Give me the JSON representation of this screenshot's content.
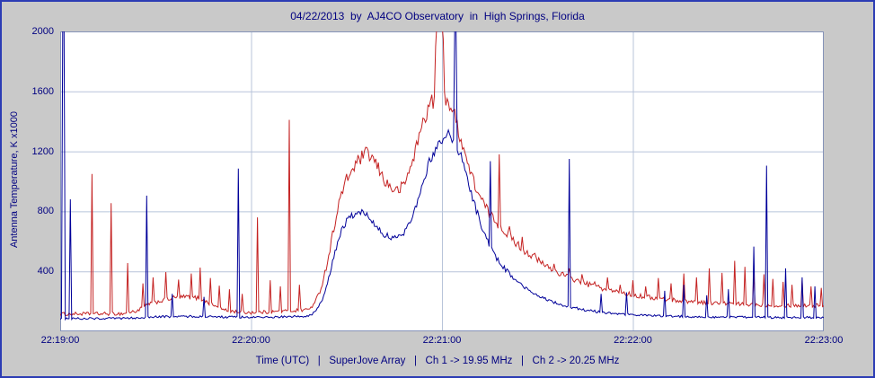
{
  "window": {
    "background": "#c9c9c9",
    "border_color": "#2c3cb4",
    "plot_background": "#ffffff",
    "grid_color": "#b8c4da",
    "axis_color": "#8593b8",
    "text_color": "#000080"
  },
  "chart_data": {
    "type": "line",
    "title": "04/22/2013  by  AJ4CO Observatory  in  High Springs, Florida",
    "xlabel": "Time (UTC)   |   SuperJove Array   |   Ch 1 -> 19.95 MHz   |   Ch 2 -> 20.25 MHz",
    "ylabel": "Antenna Temperature, K x1000",
    "xlim": [
      0,
      240
    ],
    "ylim": [
      0,
      2000
    ],
    "grid": true,
    "x_ticks": [
      {
        "t": 0,
        "label": "22:19:00"
      },
      {
        "t": 60,
        "label": "22:20:00"
      },
      {
        "t": 120,
        "label": "22:21:00"
      },
      {
        "t": 180,
        "label": "22:22:00"
      },
      {
        "t": 240,
        "label": "22:23:00"
      }
    ],
    "y_ticks": [
      {
        "v": 2000,
        "label": "2000"
      },
      {
        "v": 1600,
        "label": "1600"
      },
      {
        "v": 1200,
        "label": "1200"
      },
      {
        "v": 800,
        "label": "800"
      },
      {
        "v": 400,
        "label": "400"
      }
    ],
    "series": [
      {
        "name": "Ch 1 -> 19.95 MHz",
        "color": "#c42222",
        "envelope": [
          [
            0,
            115
          ],
          [
            20,
            118
          ],
          [
            24,
            135
          ],
          [
            28,
            185
          ],
          [
            32,
            205
          ],
          [
            36,
            225
          ],
          [
            40,
            230
          ],
          [
            44,
            220
          ],
          [
            48,
            175
          ],
          [
            52,
            138
          ],
          [
            58,
            126
          ],
          [
            65,
            128
          ],
          [
            72,
            136
          ],
          [
            78,
            146
          ],
          [
            80,
            185
          ],
          [
            82,
            290
          ],
          [
            84,
            460
          ],
          [
            86,
            690
          ],
          [
            88,
            890
          ],
          [
            90,
            1010
          ],
          [
            92,
            1085
          ],
          [
            94,
            1145
          ],
          [
            96,
            1185
          ],
          [
            98,
            1160
          ],
          [
            100,
            1085
          ],
          [
            102,
            1005
          ],
          [
            104,
            955
          ],
          [
            106,
            935
          ],
          [
            108,
            975
          ],
          [
            110,
            1085
          ],
          [
            112,
            1235
          ],
          [
            114,
            1395
          ],
          [
            116,
            1505
          ],
          [
            118,
            1565
          ],
          [
            120,
            1590
          ],
          [
            122,
            1540
          ],
          [
            124,
            1430
          ],
          [
            126,
            1285
          ],
          [
            128,
            1125
          ],
          [
            130,
            995
          ],
          [
            132,
            895
          ],
          [
            134,
            815
          ],
          [
            136,
            755
          ],
          [
            139,
            685
          ],
          [
            142,
            615
          ],
          [
            145,
            555
          ],
          [
            148,
            505
          ],
          [
            152,
            445
          ],
          [
            156,
            398
          ],
          [
            160,
            358
          ],
          [
            165,
            318
          ],
          [
            170,
            288
          ],
          [
            175,
            262
          ],
          [
            180,
            242
          ],
          [
            188,
            218
          ],
          [
            196,
            202
          ],
          [
            205,
            190
          ],
          [
            215,
            180
          ],
          [
            225,
            174
          ],
          [
            240,
            172
          ]
        ],
        "spikes": [
          [
            10,
            1050
          ],
          [
            16,
            855
          ],
          [
            21,
            455
          ],
          [
            26,
            320
          ],
          [
            29,
            360
          ],
          [
            33,
            395
          ],
          [
            37,
            345
          ],
          [
            41,
            385
          ],
          [
            44,
            425
          ],
          [
            47,
            355
          ],
          [
            50,
            305
          ],
          [
            53,
            280
          ],
          [
            57,
            250
          ],
          [
            62,
            760
          ],
          [
            66,
            340
          ],
          [
            69,
            300
          ],
          [
            72,
            1410
          ],
          [
            75,
            310
          ],
          [
            118,
            1900
          ],
          [
            118.4,
            2050
          ],
          [
            118.8,
            2050
          ],
          [
            119.2,
            2050
          ],
          [
            119.6,
            2050
          ],
          [
            120,
            2050
          ],
          [
            120.4,
            1950
          ],
          [
            138,
            1180
          ],
          [
            141,
            700
          ],
          [
            145,
            630
          ],
          [
            149,
            520
          ],
          [
            155,
            450
          ],
          [
            160,
            420
          ],
          [
            164,
            380
          ],
          [
            168,
            330
          ],
          [
            172,
            360
          ],
          [
            176,
            310
          ],
          [
            180,
            340
          ],
          [
            184,
            300
          ],
          [
            188,
            355
          ],
          [
            192,
            320
          ],
          [
            196,
            385
          ],
          [
            200,
            360
          ],
          [
            204,
            420
          ],
          [
            208,
            390
          ],
          [
            212,
            470
          ],
          [
            215,
            430
          ],
          [
            218,
            400
          ],
          [
            221,
            380
          ],
          [
            224,
            350
          ],
          [
            227,
            330
          ],
          [
            230,
            310
          ],
          [
            233,
            340
          ],
          [
            236,
            300
          ],
          [
            239,
            290
          ]
        ]
      },
      {
        "name": "Ch 2 -> 20.25 MHz",
        "color": "#000099",
        "envelope": [
          [
            0,
            85
          ],
          [
            20,
            86
          ],
          [
            30,
            96
          ],
          [
            40,
            100
          ],
          [
            50,
            96
          ],
          [
            60,
            93
          ],
          [
            70,
            96
          ],
          [
            78,
            102
          ],
          [
            80,
            125
          ],
          [
            82,
            190
          ],
          [
            84,
            315
          ],
          [
            86,
            495
          ],
          [
            88,
            655
          ],
          [
            90,
            730
          ],
          [
            92,
            775
          ],
          [
            94,
            792
          ],
          [
            96,
            782
          ],
          [
            98,
            745
          ],
          [
            100,
            688
          ],
          [
            102,
            645
          ],
          [
            104,
            622
          ],
          [
            106,
            618
          ],
          [
            108,
            655
          ],
          [
            110,
            735
          ],
          [
            112,
            855
          ],
          [
            114,
            995
          ],
          [
            116,
            1125
          ],
          [
            118,
            1225
          ],
          [
            120,
            1285
          ],
          [
            122,
            1305
          ],
          [
            124,
            1265
          ],
          [
            126,
            1165
          ],
          [
            128,
            1015
          ],
          [
            130,
            865
          ],
          [
            132,
            725
          ],
          [
            134,
            615
          ],
          [
            136,
            525
          ],
          [
            139,
            435
          ],
          [
            142,
            365
          ],
          [
            145,
            305
          ],
          [
            148,
            262
          ],
          [
            152,
            218
          ],
          [
            156,
            188
          ],
          [
            160,
            162
          ],
          [
            165,
            142
          ],
          [
            170,
            127
          ],
          [
            175,
            117
          ],
          [
            180,
            110
          ],
          [
            190,
            102
          ],
          [
            200,
            97
          ],
          [
            210,
            94
          ],
          [
            225,
            92
          ],
          [
            240,
            92
          ]
        ],
        "spikes": [
          [
            0.8,
            2020
          ],
          [
            1.2,
            2020
          ],
          [
            3,
            880
          ],
          [
            27,
            905
          ],
          [
            35,
            250
          ],
          [
            45,
            230
          ],
          [
            56,
            1085
          ],
          [
            124,
            2030
          ],
          [
            124.4,
            2030
          ],
          [
            135,
            1135
          ],
          [
            160,
            1150
          ],
          [
            170,
            250
          ],
          [
            178,
            260
          ],
          [
            190,
            270
          ],
          [
            196,
            310
          ],
          [
            203,
            240
          ],
          [
            210,
            280
          ],
          [
            218,
            565
          ],
          [
            222,
            1105
          ],
          [
            228,
            420
          ],
          [
            233,
            360
          ],
          [
            237,
            300
          ]
        ]
      }
    ]
  }
}
